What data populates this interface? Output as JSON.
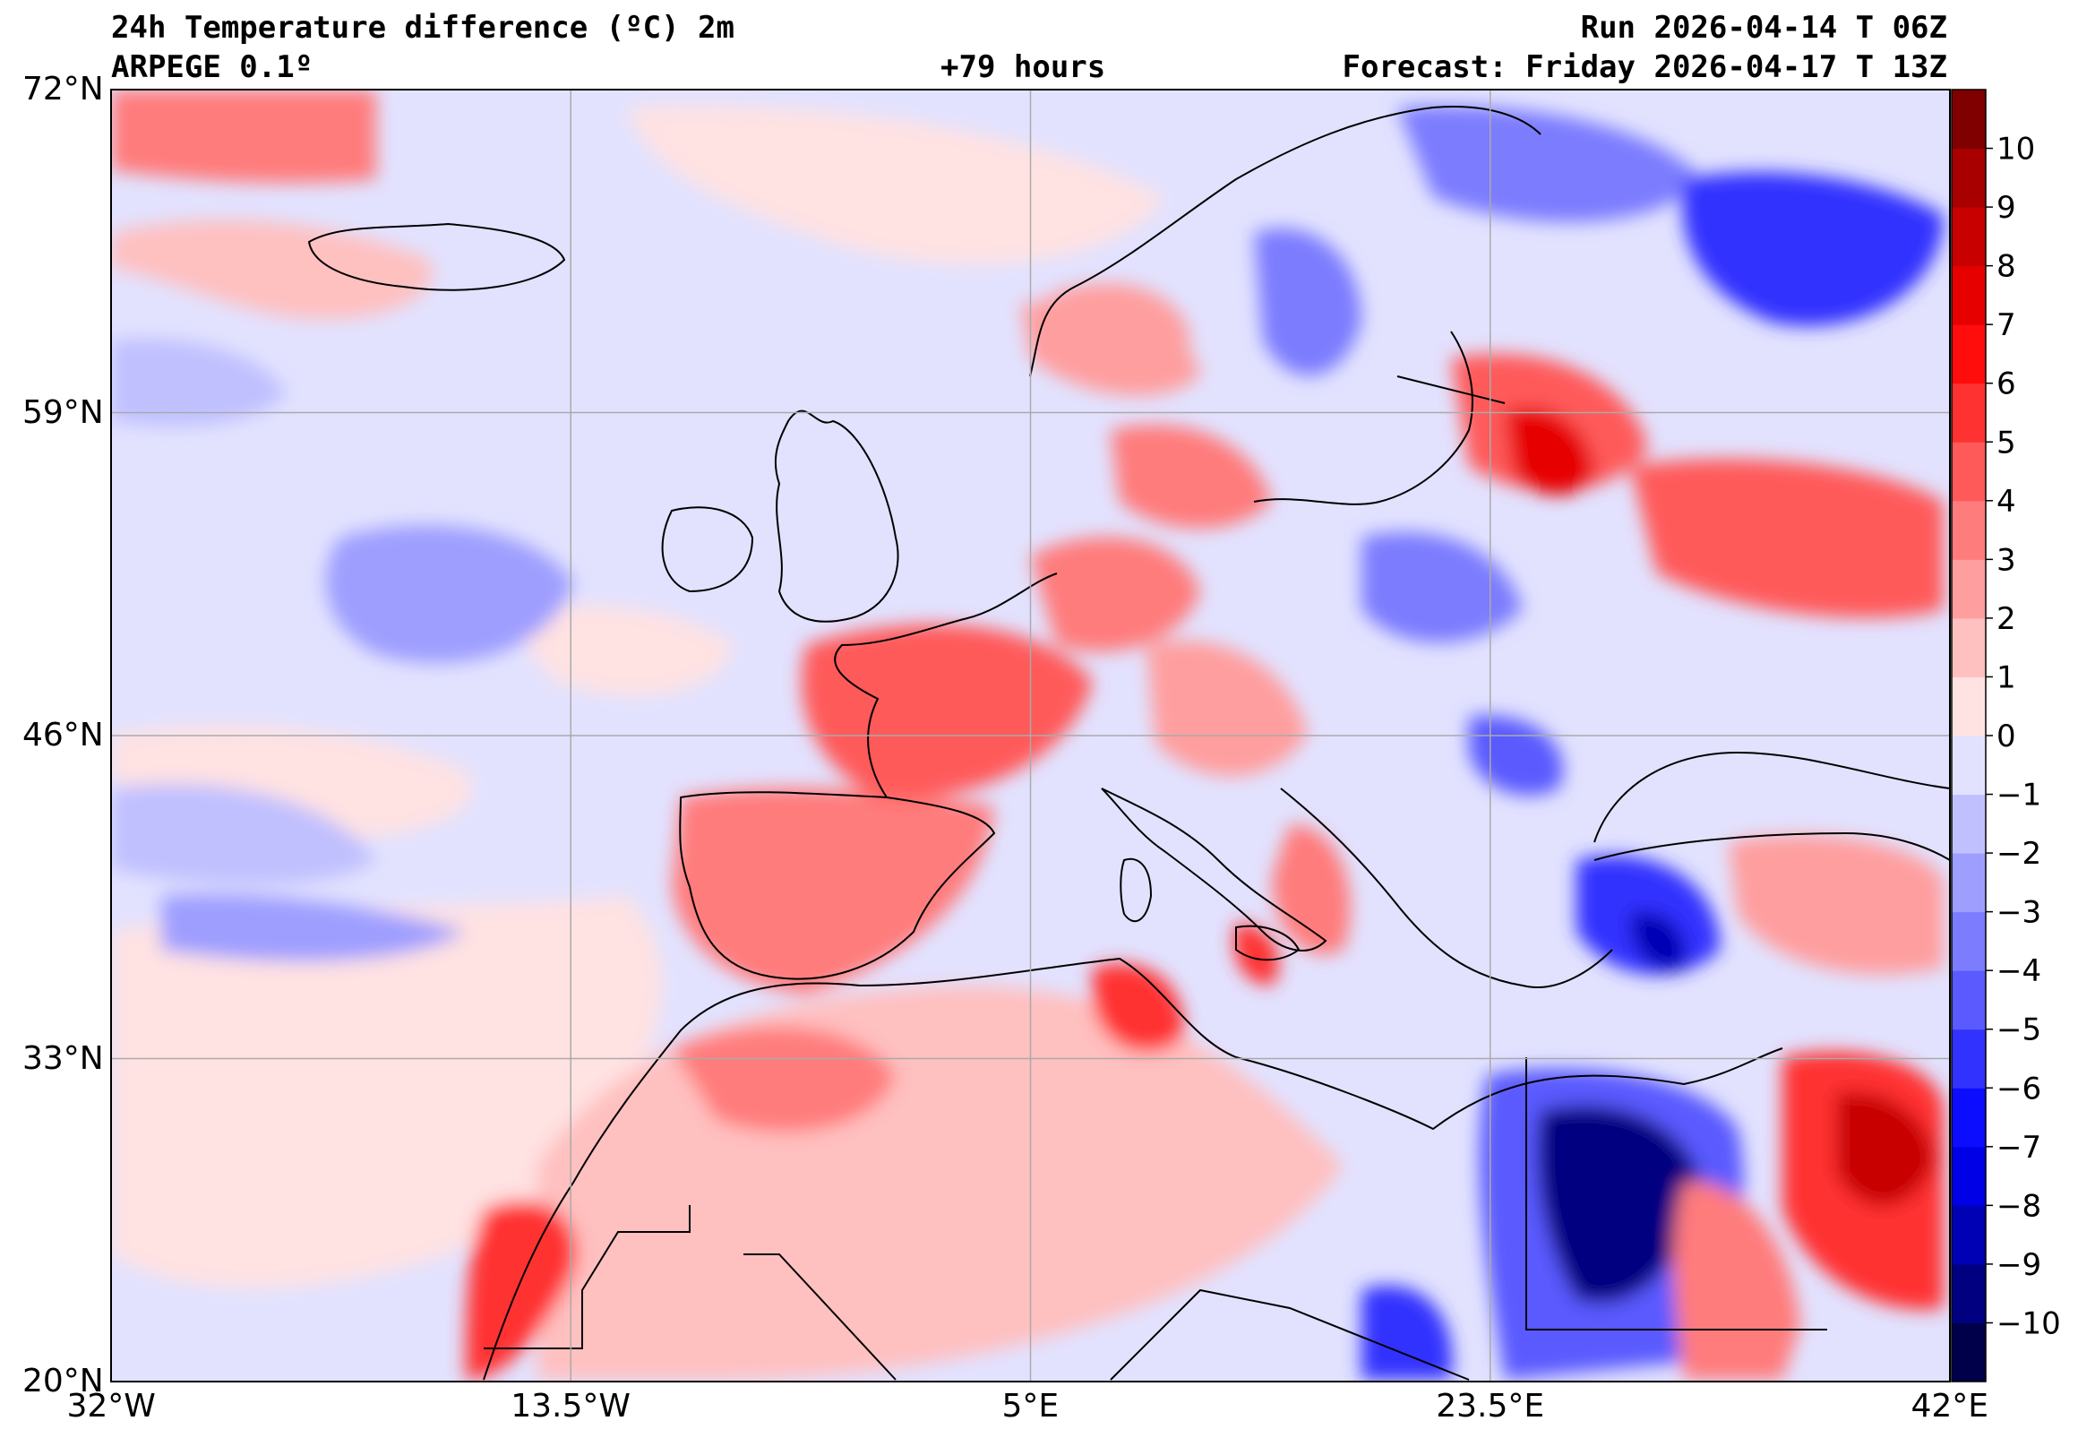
{
  "header": {
    "title": "24h Temperature difference (ºC) 2m",
    "model": "ARPEGE 0.1º",
    "lead_time": "+79 hours",
    "run": "Run 2026-04-14 T 06Z",
    "forecast": "Forecast: Friday 2026-04-17 T 13Z"
  },
  "map": {
    "lon_range": [
      -32,
      42
    ],
    "lat_range": [
      20,
      72
    ],
    "lon_ticks": [
      {
        "value": -32,
        "label": "32°W"
      },
      {
        "value": -13.5,
        "label": "13.5°W"
      },
      {
        "value": 5,
        "label": "5°E"
      },
      {
        "value": 23.5,
        "label": "23.5°E"
      },
      {
        "value": 42,
        "label": "42°E"
      }
    ],
    "lat_ticks": [
      {
        "value": 72,
        "label": "72°N"
      },
      {
        "value": 59,
        "label": "59°N"
      },
      {
        "value": 46,
        "label": "46°N"
      },
      {
        "value": 33,
        "label": "33°N"
      },
      {
        "value": 20,
        "label": "20°N"
      }
    ],
    "grid": true
  },
  "colorbar": {
    "levels": [
      -11,
      -10,
      -9,
      -8,
      -7,
      -6,
      -5,
      -4,
      -3,
      -2,
      -1,
      0,
      1,
      2,
      3,
      4,
      5,
      6,
      7,
      8,
      9,
      10,
      11
    ],
    "colors": [
      "#00004a",
      "#000080",
      "#0000b4",
      "#0000e6",
      "#0c0cff",
      "#3232ff",
      "#5a5aff",
      "#7c7cff",
      "#9e9eff",
      "#c0c0ff",
      "#e2e2ff",
      "#ffe2e2",
      "#ffc0c0",
      "#ff9e9e",
      "#ff7c7c",
      "#ff5a5a",
      "#ff3232",
      "#ff0c0c",
      "#e60000",
      "#c80000",
      "#a80000",
      "#800000"
    ],
    "tick_labels": [
      "−10",
      "−9",
      "−8",
      "−7",
      "−6",
      "−5",
      "−4",
      "−3",
      "−2",
      "−1",
      "0",
      "1",
      "2",
      "3",
      "4",
      "5",
      "6",
      "7",
      "8",
      "9",
      "10"
    ]
  }
}
